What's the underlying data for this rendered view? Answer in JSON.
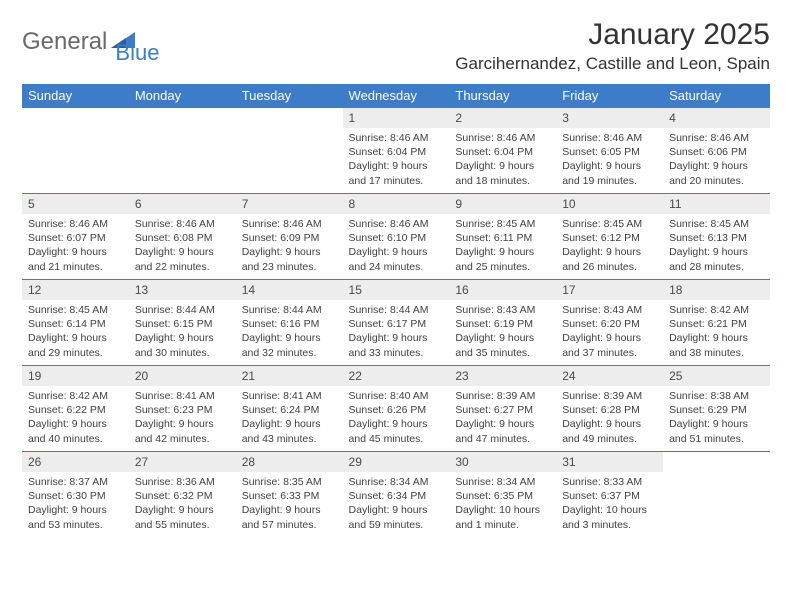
{
  "logo": {
    "text1": "General",
    "text2": "Blue",
    "triangle_color": "#3d7cc9"
  },
  "title": "January 2025",
  "location": "Garcihernandez, Castille and Leon, Spain",
  "colors": {
    "header_bg": "#3d7cc9",
    "header_fg": "#ffffff",
    "daynum_bg": "#ededed",
    "border": "#3d7cc9"
  },
  "weekdays": [
    "Sunday",
    "Monday",
    "Tuesday",
    "Wednesday",
    "Thursday",
    "Friday",
    "Saturday"
  ],
  "weeks": [
    [
      {
        "n": "",
        "sr": "",
        "ss": "",
        "dl": ""
      },
      {
        "n": "",
        "sr": "",
        "ss": "",
        "dl": ""
      },
      {
        "n": "",
        "sr": "",
        "ss": "",
        "dl": ""
      },
      {
        "n": "1",
        "sr": "Sunrise: 8:46 AM",
        "ss": "Sunset: 6:04 PM",
        "dl": "Daylight: 9 hours and 17 minutes."
      },
      {
        "n": "2",
        "sr": "Sunrise: 8:46 AM",
        "ss": "Sunset: 6:04 PM",
        "dl": "Daylight: 9 hours and 18 minutes."
      },
      {
        "n": "3",
        "sr": "Sunrise: 8:46 AM",
        "ss": "Sunset: 6:05 PM",
        "dl": "Daylight: 9 hours and 19 minutes."
      },
      {
        "n": "4",
        "sr": "Sunrise: 8:46 AM",
        "ss": "Sunset: 6:06 PM",
        "dl": "Daylight: 9 hours and 20 minutes."
      }
    ],
    [
      {
        "n": "5",
        "sr": "Sunrise: 8:46 AM",
        "ss": "Sunset: 6:07 PM",
        "dl": "Daylight: 9 hours and 21 minutes."
      },
      {
        "n": "6",
        "sr": "Sunrise: 8:46 AM",
        "ss": "Sunset: 6:08 PM",
        "dl": "Daylight: 9 hours and 22 minutes."
      },
      {
        "n": "7",
        "sr": "Sunrise: 8:46 AM",
        "ss": "Sunset: 6:09 PM",
        "dl": "Daylight: 9 hours and 23 minutes."
      },
      {
        "n": "8",
        "sr": "Sunrise: 8:46 AM",
        "ss": "Sunset: 6:10 PM",
        "dl": "Daylight: 9 hours and 24 minutes."
      },
      {
        "n": "9",
        "sr": "Sunrise: 8:45 AM",
        "ss": "Sunset: 6:11 PM",
        "dl": "Daylight: 9 hours and 25 minutes."
      },
      {
        "n": "10",
        "sr": "Sunrise: 8:45 AM",
        "ss": "Sunset: 6:12 PM",
        "dl": "Daylight: 9 hours and 26 minutes."
      },
      {
        "n": "11",
        "sr": "Sunrise: 8:45 AM",
        "ss": "Sunset: 6:13 PM",
        "dl": "Daylight: 9 hours and 28 minutes."
      }
    ],
    [
      {
        "n": "12",
        "sr": "Sunrise: 8:45 AM",
        "ss": "Sunset: 6:14 PM",
        "dl": "Daylight: 9 hours and 29 minutes."
      },
      {
        "n": "13",
        "sr": "Sunrise: 8:44 AM",
        "ss": "Sunset: 6:15 PM",
        "dl": "Daylight: 9 hours and 30 minutes."
      },
      {
        "n": "14",
        "sr": "Sunrise: 8:44 AM",
        "ss": "Sunset: 6:16 PM",
        "dl": "Daylight: 9 hours and 32 minutes."
      },
      {
        "n": "15",
        "sr": "Sunrise: 8:44 AM",
        "ss": "Sunset: 6:17 PM",
        "dl": "Daylight: 9 hours and 33 minutes."
      },
      {
        "n": "16",
        "sr": "Sunrise: 8:43 AM",
        "ss": "Sunset: 6:19 PM",
        "dl": "Daylight: 9 hours and 35 minutes."
      },
      {
        "n": "17",
        "sr": "Sunrise: 8:43 AM",
        "ss": "Sunset: 6:20 PM",
        "dl": "Daylight: 9 hours and 37 minutes."
      },
      {
        "n": "18",
        "sr": "Sunrise: 8:42 AM",
        "ss": "Sunset: 6:21 PM",
        "dl": "Daylight: 9 hours and 38 minutes."
      }
    ],
    [
      {
        "n": "19",
        "sr": "Sunrise: 8:42 AM",
        "ss": "Sunset: 6:22 PM",
        "dl": "Daylight: 9 hours and 40 minutes."
      },
      {
        "n": "20",
        "sr": "Sunrise: 8:41 AM",
        "ss": "Sunset: 6:23 PM",
        "dl": "Daylight: 9 hours and 42 minutes."
      },
      {
        "n": "21",
        "sr": "Sunrise: 8:41 AM",
        "ss": "Sunset: 6:24 PM",
        "dl": "Daylight: 9 hours and 43 minutes."
      },
      {
        "n": "22",
        "sr": "Sunrise: 8:40 AM",
        "ss": "Sunset: 6:26 PM",
        "dl": "Daylight: 9 hours and 45 minutes."
      },
      {
        "n": "23",
        "sr": "Sunrise: 8:39 AM",
        "ss": "Sunset: 6:27 PM",
        "dl": "Daylight: 9 hours and 47 minutes."
      },
      {
        "n": "24",
        "sr": "Sunrise: 8:39 AM",
        "ss": "Sunset: 6:28 PM",
        "dl": "Daylight: 9 hours and 49 minutes."
      },
      {
        "n": "25",
        "sr": "Sunrise: 8:38 AM",
        "ss": "Sunset: 6:29 PM",
        "dl": "Daylight: 9 hours and 51 minutes."
      }
    ],
    [
      {
        "n": "26",
        "sr": "Sunrise: 8:37 AM",
        "ss": "Sunset: 6:30 PM",
        "dl": "Daylight: 9 hours and 53 minutes."
      },
      {
        "n": "27",
        "sr": "Sunrise: 8:36 AM",
        "ss": "Sunset: 6:32 PM",
        "dl": "Daylight: 9 hours and 55 minutes."
      },
      {
        "n": "28",
        "sr": "Sunrise: 8:35 AM",
        "ss": "Sunset: 6:33 PM",
        "dl": "Daylight: 9 hours and 57 minutes."
      },
      {
        "n": "29",
        "sr": "Sunrise: 8:34 AM",
        "ss": "Sunset: 6:34 PM",
        "dl": "Daylight: 9 hours and 59 minutes."
      },
      {
        "n": "30",
        "sr": "Sunrise: 8:34 AM",
        "ss": "Sunset: 6:35 PM",
        "dl": "Daylight: 10 hours and 1 minute."
      },
      {
        "n": "31",
        "sr": "Sunrise: 8:33 AM",
        "ss": "Sunset: 6:37 PM",
        "dl": "Daylight: 10 hours and 3 minutes."
      },
      {
        "n": "",
        "sr": "",
        "ss": "",
        "dl": ""
      }
    ]
  ]
}
